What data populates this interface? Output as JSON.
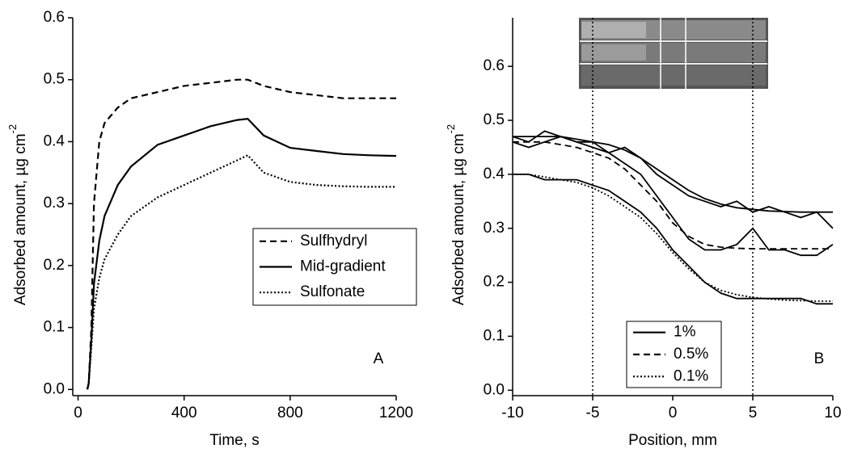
{
  "chart_data": [
    {
      "type": "line",
      "x_label": "Time, s",
      "y_label": "Adsorbed amount, µg cm",
      "y_label_superscript": "-2",
      "annotation": "A",
      "x": [
        35,
        40,
        50,
        60,
        80,
        100,
        150,
        200,
        300,
        400,
        500,
        600,
        640,
        700,
        800,
        900,
        1000,
        1100,
        1200
      ],
      "series": [
        {
          "name": "Sulfhydryl",
          "color": "#000000",
          "dash": "dashed",
          "values": [
            0,
            0.01,
            0.1,
            0.3,
            0.4,
            0.43,
            0.455,
            0.47,
            0.48,
            0.49,
            0.495,
            0.5,
            0.5,
            0.49,
            0.48,
            0.475,
            0.47,
            0.47,
            0.47
          ]
        },
        {
          "name": "Mid-gradient",
          "color": "#000000",
          "dash": "solid",
          "values": [
            0,
            0.01,
            0.08,
            0.17,
            0.24,
            0.28,
            0.33,
            0.36,
            0.395,
            0.41,
            0.425,
            0.435,
            0.437,
            0.41,
            0.39,
            0.385,
            0.38,
            0.378,
            0.377
          ]
        },
        {
          "name": "Sulfonate",
          "color": "#000000",
          "dash": "dotted",
          "values": [
            0,
            0.01,
            0.07,
            0.13,
            0.18,
            0.21,
            0.25,
            0.28,
            0.31,
            0.33,
            0.35,
            0.37,
            0.378,
            0.35,
            0.335,
            0.33,
            0.328,
            0.327,
            0.327
          ]
        }
      ],
      "xlim": [
        -20,
        1200
      ],
      "xticks": [
        0,
        400,
        800,
        1200
      ],
      "ylim": [
        -0.01,
        0.6
      ],
      "yticks": [
        {
          "value": 0,
          "label": "0.0"
        },
        0.1,
        0.2,
        0.3,
        0.4,
        0.5,
        0.6
      ],
      "legend": "lower right"
    },
    {
      "type": "line",
      "x_label": "Position, mm",
      "y_label": "Adsorbed amount, µg cm",
      "y_label_superscript": "-2",
      "annotation": "B",
      "x": [
        -10,
        -9,
        -8,
        -7,
        -6,
        -5,
        -4,
        -3,
        -2,
        -1,
        0,
        1,
        2,
        3,
        4,
        5,
        6,
        7,
        8,
        9,
        10
      ],
      "series": [
        {
          "name": "1%",
          "color": "#000000",
          "dash": "solid",
          "values": [
            0.47,
            0.46,
            0.48,
            0.47,
            0.46,
            0.46,
            0.44,
            0.45,
            0.43,
            0.4,
            0.38,
            0.36,
            0.35,
            0.34,
            0.35,
            0.33,
            0.34,
            0.33,
            0.32,
            0.33,
            0.3
          ],
          "fit": [
            0.47,
            0.47,
            0.47,
            0.47,
            0.465,
            0.46,
            0.455,
            0.445,
            0.43,
            0.41,
            0.39,
            0.37,
            0.355,
            0.345,
            0.338,
            0.335,
            0.332,
            0.331,
            0.33,
            0.33,
            0.33
          ]
        },
        {
          "name": "0.5%",
          "color": "#000000",
          "dash": "dashed",
          "values": [
            0.46,
            0.45,
            0.46,
            0.47,
            0.46,
            0.45,
            0.44,
            0.42,
            0.4,
            0.36,
            0.32,
            0.28,
            0.26,
            0.26,
            0.27,
            0.3,
            0.26,
            0.26,
            0.25,
            0.25,
            0.27
          ],
          "fit": [
            0.46,
            0.46,
            0.46,
            0.455,
            0.45,
            0.44,
            0.43,
            0.41,
            0.38,
            0.35,
            0.31,
            0.285,
            0.27,
            0.265,
            0.263,
            0.262,
            0.262,
            0.262,
            0.262,
            0.262,
            0.262
          ]
        },
        {
          "name": "0.1%",
          "color": "#000000",
          "dash": "dotted",
          "values": [
            0.4,
            0.4,
            0.39,
            0.39,
            0.39,
            0.38,
            0.37,
            0.35,
            0.33,
            0.3,
            0.26,
            0.23,
            0.2,
            0.18,
            0.17,
            0.17,
            0.17,
            0.17,
            0.17,
            0.16,
            0.16
          ],
          "fit": [
            0.4,
            0.4,
            0.395,
            0.39,
            0.385,
            0.375,
            0.36,
            0.34,
            0.32,
            0.29,
            0.255,
            0.225,
            0.2,
            0.185,
            0.177,
            0.172,
            0.169,
            0.167,
            0.166,
            0.165,
            0.165
          ]
        }
      ],
      "vlines": [
        -5,
        5
      ],
      "xlim": [
        -10,
        10
      ],
      "xticks": [
        -10,
        -5,
        0,
        5,
        10
      ],
      "ylim": [
        -0.01,
        0.69
      ],
      "yticks": [
        {
          "value": 0,
          "label": "0.0"
        },
        0.1,
        0.2,
        0.3,
        0.4,
        0.5,
        0.6
      ],
      "legend": "lower left"
    }
  ]
}
